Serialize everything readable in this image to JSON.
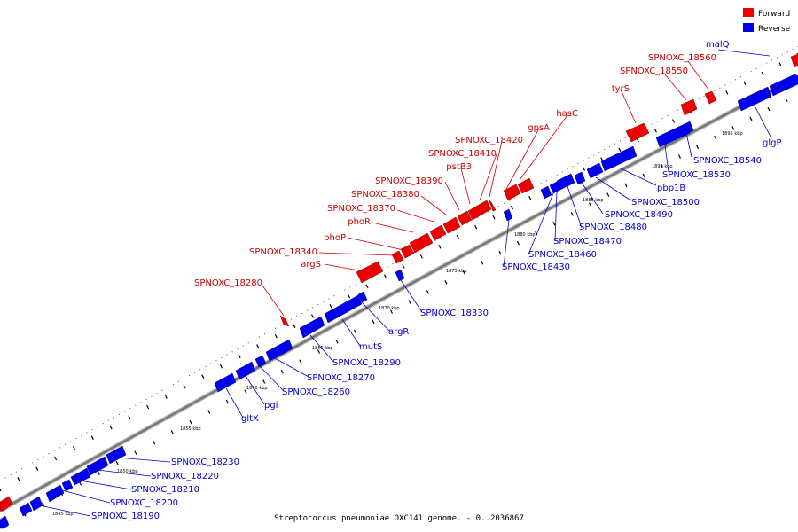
{
  "legend": [
    {
      "label": "Forward",
      "color": "#ee0000"
    },
    {
      "label": "Reverse",
      "color": "#0000ee"
    }
  ],
  "caption": "Streptococcus pneumoniae OXC141 genome. - 0..2036867",
  "colors": {
    "forward": "#ee0000",
    "reverse": "#0000ee",
    "label_forward": "#cc0000",
    "label_reverse": "#0000cc",
    "backbone": "#777777",
    "tick": "#000000"
  },
  "kbp_ticks": [
    "1845 kbp",
    "1850 kbp",
    "1855 kbp",
    "1860 kbp",
    "1865 kbp",
    "1870 kbp",
    "1875 kbp",
    "1880 kbp",
    "1885 kbp",
    "1890 kbp",
    "1895 kbp"
  ],
  "forward_labels": [
    "SPNOXC_18280",
    "argS",
    "SPNOXC_18340",
    "phoP",
    "phoR",
    "SPNOXC_18370",
    "SPNOXC_18380",
    "SPNOXC_18390",
    "pstB3",
    "SPNOXC_18410",
    "SPNOXC_18420",
    "gpsA",
    "hasC",
    "tyrS",
    "SPNOXC_18550",
    "SPNOXC_18560"
  ],
  "reverse_labels": [
    "malQ",
    "glgP",
    "SPNOXC_18540",
    "SPNOXC_18530",
    "pbp1B",
    "SPNOXC_18500",
    "SPNOXC_18490",
    "SPNOXC_18480",
    "SPNOXC_18470",
    "SPNOXC_18460",
    "SPNOXC_18430",
    "SPNOXC_18330",
    "argR",
    "mutS",
    "SPNOXC_18290",
    "SPNOXC_18270",
    "SPNOXC_18260",
    "pgi",
    "gltX",
    "SPNOXC_18230",
    "SPNOXC_18220",
    "SPNOXC_18210",
    "SPNOXC_18200",
    "SPNOXC_18190"
  ]
}
